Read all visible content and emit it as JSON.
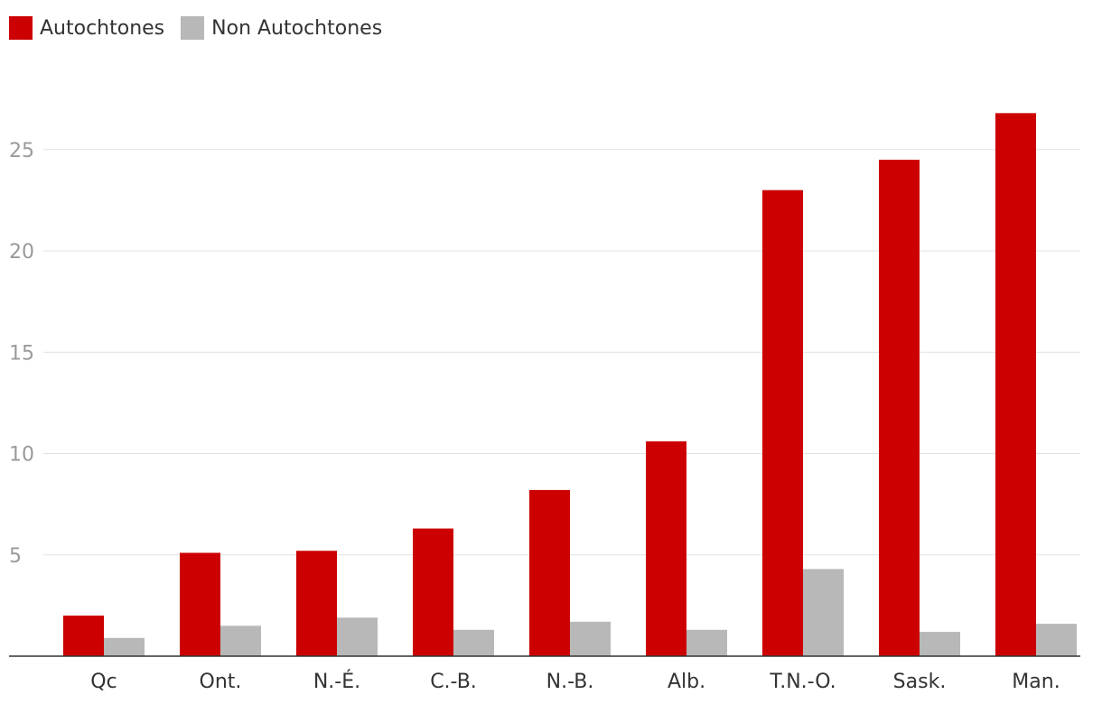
{
  "chart_data": {
    "type": "bar",
    "title": "",
    "xlabel": "",
    "ylabel": "",
    "ylim": [
      0,
      28
    ],
    "yticks": [
      5,
      10,
      15,
      20,
      25
    ],
    "categories": [
      "Qc",
      "Ont.",
      "N.-É.",
      "C.-B.",
      "N.-B.",
      "Alb.",
      "T.N.-O.",
      "Sask.",
      "Man."
    ],
    "series": [
      {
        "name": "Autochtones",
        "color": "#cc0000",
        "values": [
          2.0,
          5.1,
          5.2,
          6.3,
          8.2,
          10.6,
          23.0,
          24.5,
          26.8
        ]
      },
      {
        "name": "Non Autochtones",
        "color": "#b8b8b8",
        "values": [
          0.9,
          1.5,
          1.9,
          1.3,
          1.7,
          1.3,
          4.3,
          1.2,
          1.6
        ]
      }
    ],
    "legend": "top-left",
    "grid": true
  }
}
